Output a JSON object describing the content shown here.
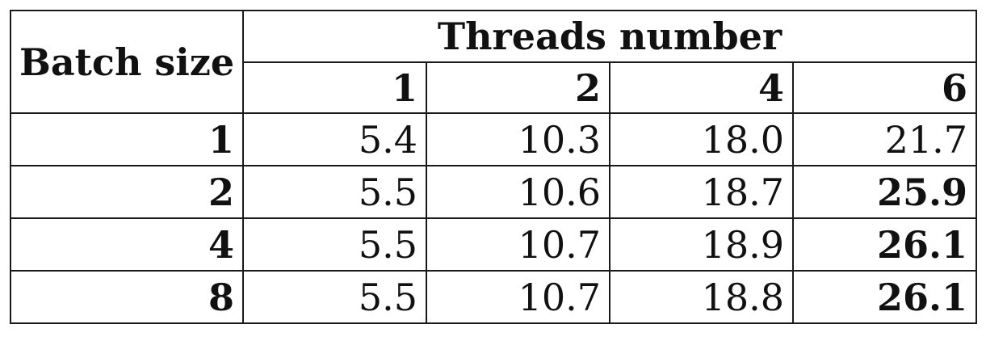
{
  "table": {
    "corner_label": "Batch size",
    "group_label": "Threads number",
    "columns": [
      "1",
      "2",
      "4",
      "6"
    ],
    "rows": [
      {
        "label": "1",
        "values": [
          "5.4",
          "10.3",
          "18.0",
          "21.7"
        ],
        "bold": [
          false,
          false,
          false,
          false
        ]
      },
      {
        "label": "2",
        "values": [
          "5.5",
          "10.6",
          "18.7",
          "25.9"
        ],
        "bold": [
          false,
          false,
          false,
          true
        ]
      },
      {
        "label": "4",
        "values": [
          "5.5",
          "10.7",
          "18.9",
          "26.1"
        ],
        "bold": [
          false,
          false,
          false,
          true
        ]
      },
      {
        "label": "8",
        "values": [
          "5.5",
          "10.7",
          "18.8",
          "26.1"
        ],
        "bold": [
          false,
          false,
          false,
          true
        ]
      }
    ]
  }
}
